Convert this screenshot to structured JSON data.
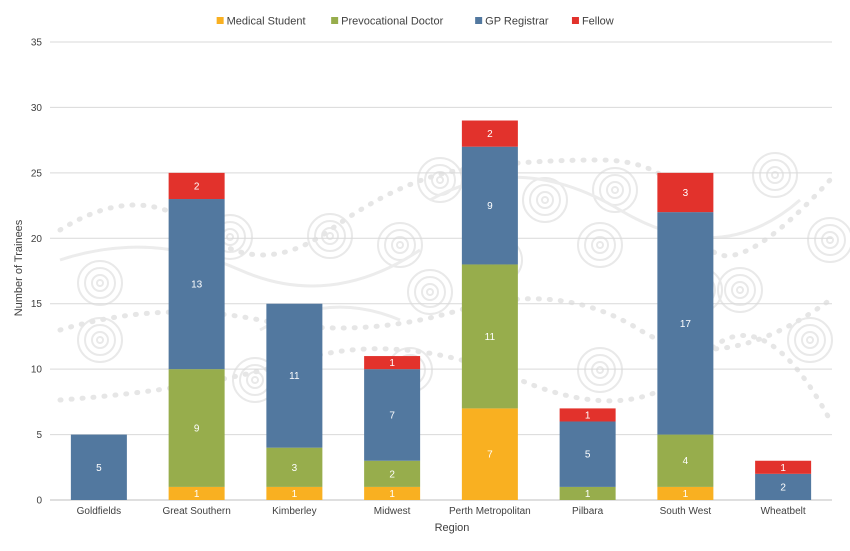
{
  "chart_data": {
    "type": "bar",
    "stacked": true,
    "xlabel": "Region",
    "ylabel": "Number of Trainees",
    "ylim": [
      0,
      35
    ],
    "yticks": [
      0,
      5,
      10,
      15,
      20,
      25,
      30,
      35
    ],
    "grid": true,
    "legend_position": "top",
    "categories": [
      "Goldfields",
      "Great Southern",
      "Kimberley",
      "Midwest",
      "Perth Metropolitan",
      "Pilbara",
      "South West",
      "Wheatbelt"
    ],
    "series": [
      {
        "name": "Medical Student",
        "color": "#F9B021",
        "label_color": "#ffffff",
        "values": [
          0,
          1,
          1,
          1,
          7,
          0,
          1,
          0
        ]
      },
      {
        "name": "Prevocational Doctor",
        "color": "#97AD4C",
        "label_color": "#ffffff",
        "values": [
          0,
          9,
          3,
          2,
          11,
          1,
          4,
          0
        ]
      },
      {
        "name": "GP Registrar",
        "color": "#52789F",
        "label_color": "#ffffff",
        "values": [
          5,
          13,
          11,
          7,
          9,
          5,
          17,
          2
        ]
      },
      {
        "name": "Fellow",
        "color": "#E2322C",
        "label_color": "#ffffff",
        "values": [
          0,
          2,
          0,
          1,
          2,
          1,
          3,
          1
        ]
      }
    ]
  }
}
